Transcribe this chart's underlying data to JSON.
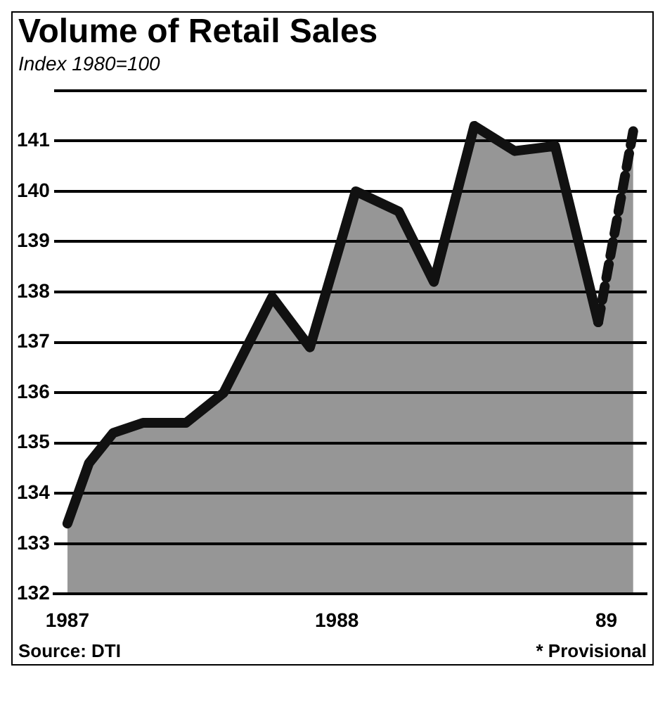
{
  "chart_data": {
    "type": "area",
    "title": "Volume of Retail Sales",
    "subtitle": "Index 1980=100",
    "annotations": [
      "Source: DTI",
      "* Provisional"
    ],
    "xlim": [
      1986.95,
      1989.15
    ],
    "xticks": [
      {
        "value": 1987,
        "label": "1987"
      },
      {
        "value": 1988,
        "label": "1988"
      },
      {
        "value": 1989,
        "label": "89"
      }
    ],
    "ylim": [
      132,
      142
    ],
    "yticks": [
      132,
      133,
      134,
      135,
      136,
      137,
      138,
      139,
      140,
      141,
      {
        "value": 142,
        "label": null
      }
    ],
    "grid": "y",
    "legend": false,
    "marker": "none",
    "series": [
      {
        "color": "#111111",
        "line_style": "solid",
        "x": [
          1987.0,
          1987.08,
          1987.17,
          1987.28,
          1987.44,
          1987.58,
          1987.76,
          1987.9,
          1988.07,
          1988.23,
          1988.36,
          1988.51,
          1988.66,
          1988.81,
          1988.97
        ],
        "values": [
          133.4,
          134.6,
          135.2,
          135.4,
          135.4,
          136.0,
          137.9,
          136.9,
          140.0,
          139.6,
          138.2,
          141.3,
          140.8,
          140.9,
          137.4
        ]
      },
      {
        "color": "#111111",
        "line_style": "dashed",
        "x": [
          1988.97,
          1989.1
        ],
        "values": [
          137.4,
          141.2
        ]
      }
    ]
  }
}
